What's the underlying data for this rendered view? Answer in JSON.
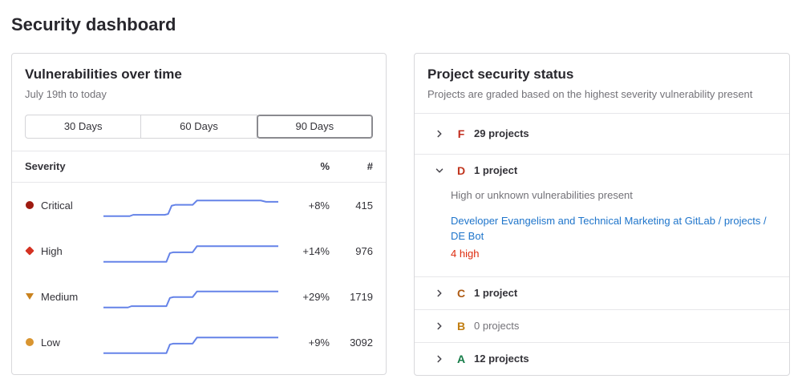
{
  "page": {
    "title": "Security dashboard"
  },
  "colors": {
    "link": "#1f75cb",
    "danger": "#dd2b0e",
    "sparkline": "#6583e8"
  },
  "vulnerabilities_card": {
    "title": "Vulnerabilities over time",
    "subtitle": "July 19th to today",
    "range_buttons": [
      {
        "label": "30 Days",
        "selected": false
      },
      {
        "label": "60 Days",
        "selected": false
      },
      {
        "label": "90 Days",
        "selected": true
      }
    ],
    "table": {
      "headers": {
        "severity": "Severity",
        "percent": "%",
        "count": "#"
      },
      "rows": [
        {
          "severity": "Critical",
          "icon": "severity-critical-icon",
          "icon_shape": "circle",
          "icon_color": "#9e1a10",
          "percent_change": "+8%",
          "count": "415",
          "sparkline": [
            [
              0,
              21
            ],
            [
              15,
              21
            ],
            [
              17,
              19.5
            ],
            [
              35,
              19.5
            ],
            [
              37,
              18.5
            ],
            [
              39,
              9
            ],
            [
              41,
              8
            ],
            [
              51,
              8
            ],
            [
              53.5,
              3
            ],
            [
              90,
              3
            ],
            [
              93,
              4.5
            ],
            [
              100,
              4.5
            ]
          ]
        },
        {
          "severity": "High",
          "icon": "severity-high-icon",
          "icon_shape": "diamond",
          "icon_color": "#d43222",
          "percent_change": "+14%",
          "count": "976",
          "sparkline": [
            [
              0,
              21
            ],
            [
              36,
              21
            ],
            [
              38,
              11
            ],
            [
              40,
              10
            ],
            [
              51,
              10
            ],
            [
              53.5,
              3
            ],
            [
              100,
              3
            ]
          ]
        },
        {
          "severity": "Medium",
          "icon": "severity-medium-icon",
          "icon_shape": "triangle-down",
          "icon_color": "#c9821e",
          "percent_change": "+29%",
          "count": "1719",
          "sparkline": [
            [
              0,
              21
            ],
            [
              14,
              21
            ],
            [
              16,
              19.5
            ],
            [
              36,
              19.5
            ],
            [
              38,
              10
            ],
            [
              40,
              9
            ],
            [
              51,
              9
            ],
            [
              53.5,
              2.5
            ],
            [
              100,
              2.5
            ]
          ]
        },
        {
          "severity": "Low",
          "icon": "severity-low-icon",
          "icon_shape": "circle",
          "icon_color": "#d99530",
          "percent_change": "+9%",
          "count": "3092",
          "sparkline": [
            [
              0,
              21
            ],
            [
              36,
              21
            ],
            [
              38,
              11
            ],
            [
              40,
              10
            ],
            [
              51,
              10
            ],
            [
              53.5,
              3
            ],
            [
              100,
              3
            ]
          ]
        }
      ]
    }
  },
  "project_status_card": {
    "title": "Project security status",
    "subtitle": "Projects are graded based on the highest severity vulnerability present",
    "grades": [
      {
        "letter": "F",
        "color": "#c12a1b",
        "count_label": "29 projects",
        "expanded": false,
        "muted": false
      },
      {
        "letter": "D",
        "color": "#c0341d",
        "count_label": "1 project",
        "expanded": true,
        "muted": false,
        "description": "High or unknown vulnerabilities present",
        "projects": [
          {
            "link": "Developer Evangelism and Technical Marketing at GitLab / projects / DE Bot",
            "finding": "4 high"
          }
        ]
      },
      {
        "letter": "C",
        "color": "#ad5a13",
        "count_label": "1 project",
        "expanded": false,
        "muted": false
      },
      {
        "letter": "B",
        "color": "#c17d10",
        "count_label": "0 projects",
        "expanded": false,
        "muted": true
      },
      {
        "letter": "A",
        "color": "#167c48",
        "count_label": "12 projects",
        "expanded": false,
        "muted": false
      }
    ]
  }
}
